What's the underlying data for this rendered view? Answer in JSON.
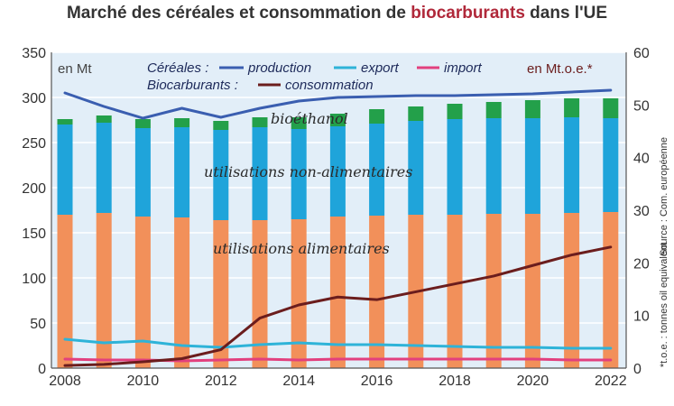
{
  "title": {
    "part1": "Marché des céréales et consommation de ",
    "accent": "biocarburants",
    "part2": " dans l'UE"
  },
  "units": {
    "left": "en Mt",
    "right": "en Mt.o.e.*"
  },
  "legend": {
    "cereals_label": "Céréales :",
    "biofuels_label": "Biocarburants :",
    "production": "production",
    "export": "export",
    "import": "import",
    "consommation": "consommation"
  },
  "annotations": {
    "bioethanol": "bioéthanol",
    "non_food": "utilisations non-alimentaires",
    "food": "utilisations alimentaires"
  },
  "side_notes": {
    "source": "Source : Com. européenne",
    "toe": "*t.o.e. : tonnes oil equivalent"
  },
  "colors": {
    "background": "#e2eef8",
    "food": "#f2905a",
    "non_food": "#1fa4da",
    "bioethanol": "#23a04a",
    "production": "#3a5eb0",
    "export": "#2eb3d8",
    "import": "#e2407e",
    "consommation": "#6b1d1d",
    "grid": "#ffffff"
  },
  "chart_data": {
    "type": "bar",
    "title": "Marché des céréales et consommation de biocarburants dans l'UE",
    "x": [
      2008,
      2009,
      2010,
      2011,
      2012,
      2013,
      2014,
      2015,
      2016,
      2017,
      2018,
      2019,
      2020,
      2021,
      2022
    ],
    "x_tick_labels": [
      "2008",
      "2010",
      "2012",
      "2014",
      "2016",
      "2018",
      "2020",
      "2022"
    ],
    "y_left": {
      "label": "en Mt",
      "range": [
        0,
        350
      ],
      "ticks": [
        "0",
        "50",
        "100",
        "150",
        "200",
        "250",
        "300",
        "350"
      ]
    },
    "y_right": {
      "label": "en Mt.o.e.*",
      "range": [
        0,
        60
      ],
      "ticks": [
        "0",
        "10",
        "20",
        "30",
        "40",
        "50",
        "60"
      ]
    },
    "grid": true,
    "stacked_bars": [
      {
        "name": "utilisations alimentaires",
        "axis": "left",
        "values": [
          170,
          172,
          168,
          167,
          164,
          164,
          165,
          168,
          169,
          170,
          170,
          171,
          171,
          172,
          173
        ]
      },
      {
        "name": "utilisations non-alimentaires",
        "axis": "left",
        "values": [
          100,
          100,
          98,
          100,
          100,
          103,
          100,
          100,
          102,
          104,
          106,
          106,
          106,
          106,
          104
        ]
      },
      {
        "name": "bioéthanol",
        "axis": "left",
        "values": [
          6,
          8,
          10,
          10,
          10,
          11,
          13,
          14,
          16,
          16,
          17,
          18,
          20,
          21,
          22
        ]
      }
    ],
    "series": [
      {
        "name": "production",
        "axis": "left",
        "type": "line",
        "values": [
          305,
          290,
          277,
          288,
          278,
          288,
          296,
          300,
          301,
          302,
          302,
          303,
          304,
          306,
          308
        ]
      },
      {
        "name": "export",
        "axis": "left",
        "type": "line",
        "values": [
          32,
          28,
          30,
          25,
          23,
          26,
          28,
          26,
          26,
          25,
          24,
          23,
          23,
          22,
          22
        ]
      },
      {
        "name": "import",
        "axis": "left",
        "type": "line",
        "values": [
          10,
          9,
          9,
          8,
          9,
          10,
          9,
          10,
          10,
          10,
          10,
          10,
          10,
          9,
          9
        ]
      },
      {
        "name": "consommation",
        "axis": "right",
        "type": "line",
        "values": [
          0.5,
          0.7,
          1.2,
          1.8,
          3.5,
          9.5,
          12,
          13.5,
          13,
          14.5,
          16,
          17.5,
          19.5,
          21.5,
          23
        ]
      }
    ]
  }
}
